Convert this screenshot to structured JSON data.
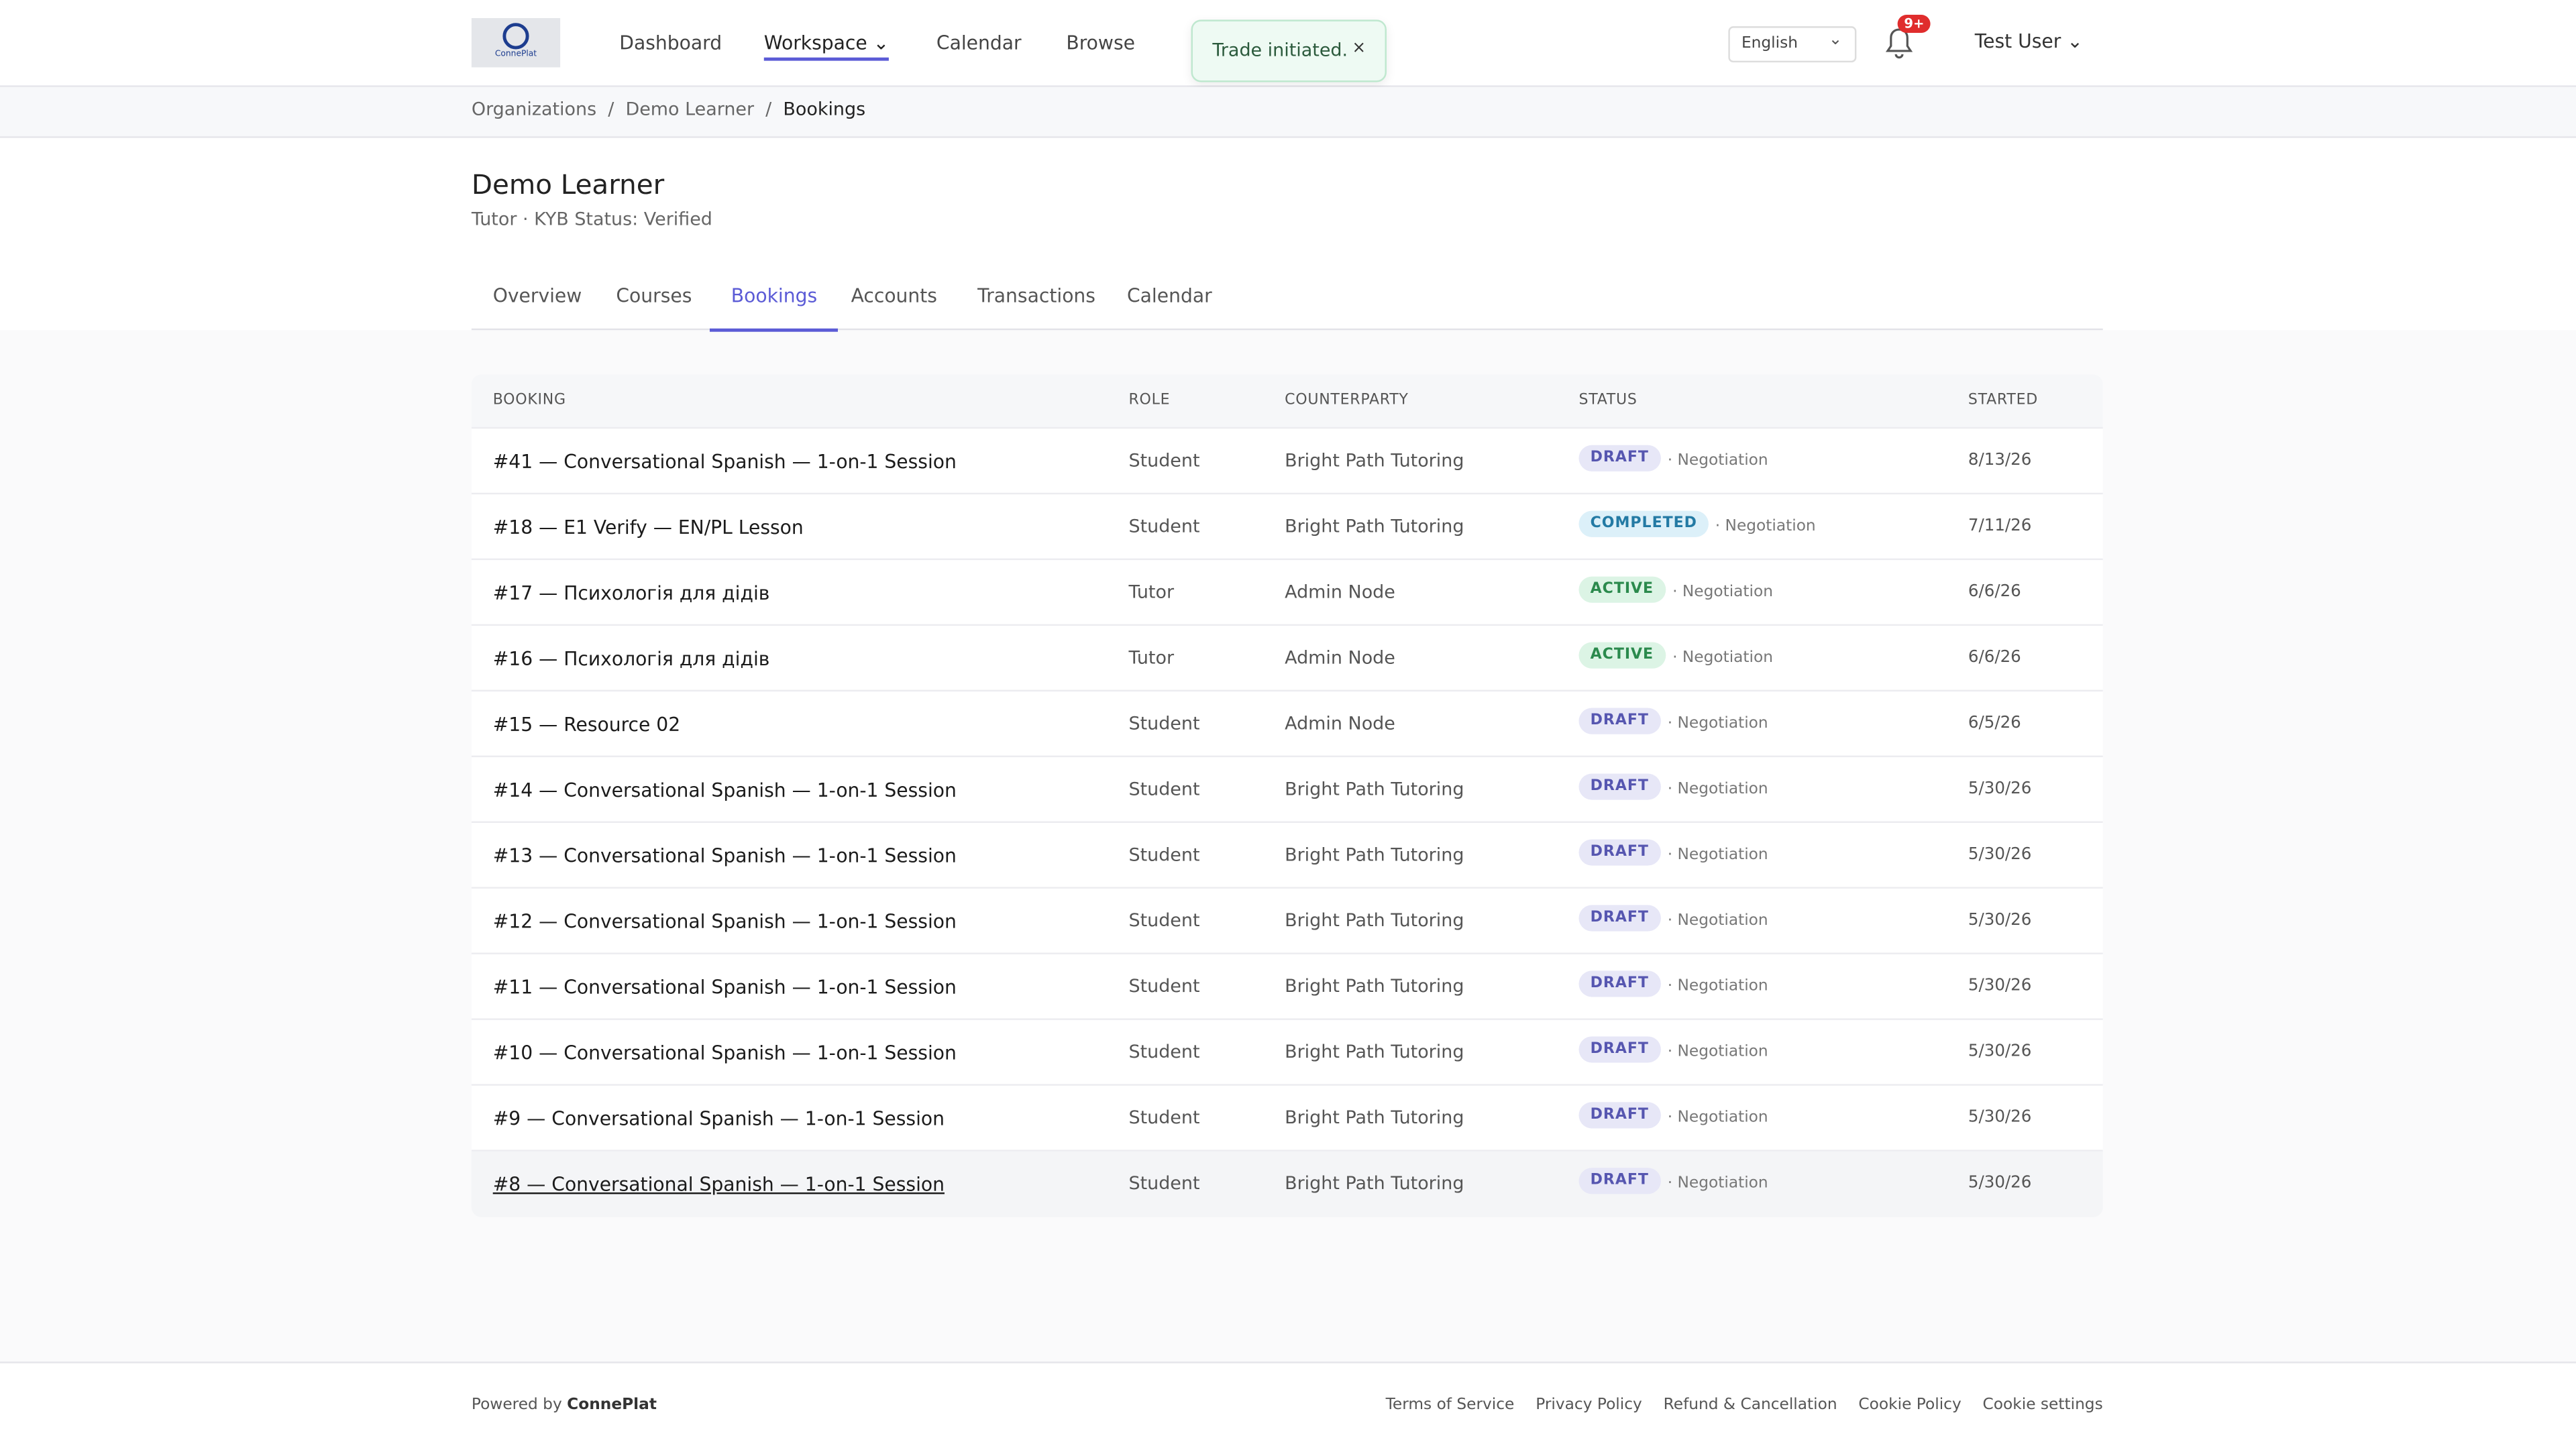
{
  "header": {
    "logo": "ConnePlat",
    "nav": [
      "Dashboard",
      "Workspace",
      "Calendar",
      "Browse"
    ],
    "toast": "Trade initiated.",
    "toast_close": "×",
    "language": "English",
    "badge": "9+",
    "user": "Test User"
  },
  "breadcrumb": [
    "Organizations",
    "Demo Learner",
    "Bookings"
  ],
  "page": {
    "title": "Demo Learner",
    "subtitle": "Tutor · KYB Status: Verified",
    "tabs": [
      "Overview",
      "Courses",
      "Bookings",
      "Accounts",
      "Transactions",
      "Calendar"
    ]
  },
  "table": {
    "columns": [
      "BOOKING",
      "ROLE",
      "COUNTERPARTY",
      "STATUS",
      "STARTED"
    ],
    "rows": [
      [
        "#41 — Conversational Spanish — 1-on-1 Session",
        "Student",
        "Bright Path Tutoring",
        "DRAFT",
        "· Negotiation",
        "8/13/26"
      ],
      [
        "#18 — E1 Verify — EN/PL Lesson",
        "Student",
        "Bright Path Tutoring",
        "COMPLETED",
        "· Negotiation",
        "7/11/26"
      ],
      [
        "#17 — Психологія для дідів",
        "Tutor",
        "Admin Node",
        "ACTIVE",
        "· Negotiation",
        "6/6/26"
      ],
      [
        "#16 — Психологія для дідів",
        "Tutor",
        "Admin Node",
        "ACTIVE",
        "· Negotiation",
        "6/6/26"
      ],
      [
        "#15 — Resource 02",
        "Student",
        "Admin Node",
        "DRAFT",
        "· Negotiation",
        "6/5/26"
      ],
      [
        "#14 — Conversational Spanish — 1-on-1 Session",
        "Student",
        "Bright Path Tutoring",
        "DRAFT",
        "· Negotiation",
        "5/30/26"
      ],
      [
        "#13 — Conversational Spanish — 1-on-1 Session",
        "Student",
        "Bright Path Tutoring",
        "DRAFT",
        "· Negotiation",
        "5/30/26"
      ],
      [
        "#12 — Conversational Spanish — 1-on-1 Session",
        "Student",
        "Bright Path Tutoring",
        "DRAFT",
        "· Negotiation",
        "5/30/26"
      ],
      [
        "#11 — Conversational Spanish — 1-on-1 Session",
        "Student",
        "Bright Path Tutoring",
        "DRAFT",
        "· Negotiation",
        "5/30/26"
      ],
      [
        "#10 — Conversational Spanish — 1-on-1 Session",
        "Student",
        "Bright Path Tutoring",
        "DRAFT",
        "· Negotiation",
        "5/30/26"
      ],
      [
        "#9 — Conversational Spanish — 1-on-1 Session",
        "Student",
        "Bright Path Tutoring",
        "DRAFT",
        "· Negotiation",
        "5/30/26"
      ],
      [
        "#8 — Conversational Spanish — 1-on-1 Session",
        "Student",
        "Bright Path Tutoring",
        "DRAFT",
        "· Negotiation",
        "5/30/26"
      ]
    ]
  },
  "footer": {
    "powered": "Powered by",
    "brand": "ConnePlat",
    "links": [
      "Terms of Service",
      "Privacy Policy",
      "Refund & Cancellation",
      "Cookie Policy",
      "Cookie settings"
    ]
  }
}
